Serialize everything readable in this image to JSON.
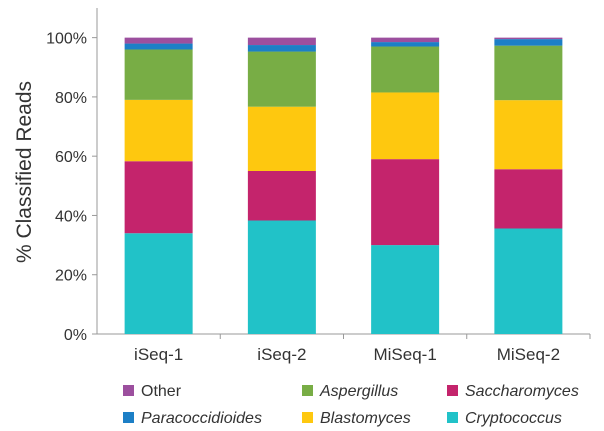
{
  "chart_data": {
    "type": "bar",
    "stacked": true,
    "ylabel": "% Classified Reads",
    "xlabel": "",
    "ylim": [
      0,
      110
    ],
    "yticks": [
      0,
      20,
      40,
      60,
      80,
      100
    ],
    "ytick_suffix": "%",
    "grid": false,
    "legend_position": "bottom",
    "categories": [
      "iSeq-1",
      "iSeq-2",
      "MiSeq-1",
      "MiSeq-2"
    ],
    "series": [
      {
        "name": "Cryptococcus",
        "italic": true,
        "color": "#21c2c8",
        "values": [
          34,
          38.3,
          30,
          35.6
        ]
      },
      {
        "name": "Saccharomyces",
        "italic": true,
        "color": "#c4246c",
        "values": [
          24.3,
          16.7,
          29,
          20
        ]
      },
      {
        "name": "Blastomyces",
        "italic": true,
        "color": "#fec80f",
        "values": [
          20.7,
          21.7,
          22.5,
          23.3
        ]
      },
      {
        "name": "Aspergillus",
        "italic": true,
        "color": "#78ad45",
        "values": [
          17,
          18.6,
          15.5,
          18.4
        ]
      },
      {
        "name": "Paracoccidioides",
        "italic": true,
        "color": "#1c7fc6",
        "values": [
          2,
          2.2,
          1.5,
          2.2
        ]
      },
      {
        "name": "Other",
        "italic": false,
        "color": "#9c4f9e",
        "values": [
          2,
          2.5,
          1.5,
          0.5
        ]
      }
    ],
    "legend_order": [
      "Other",
      "Aspergillus",
      "Saccharomyces",
      "Paracoccidioides",
      "Blastomyces",
      "Cryptococcus"
    ]
  }
}
